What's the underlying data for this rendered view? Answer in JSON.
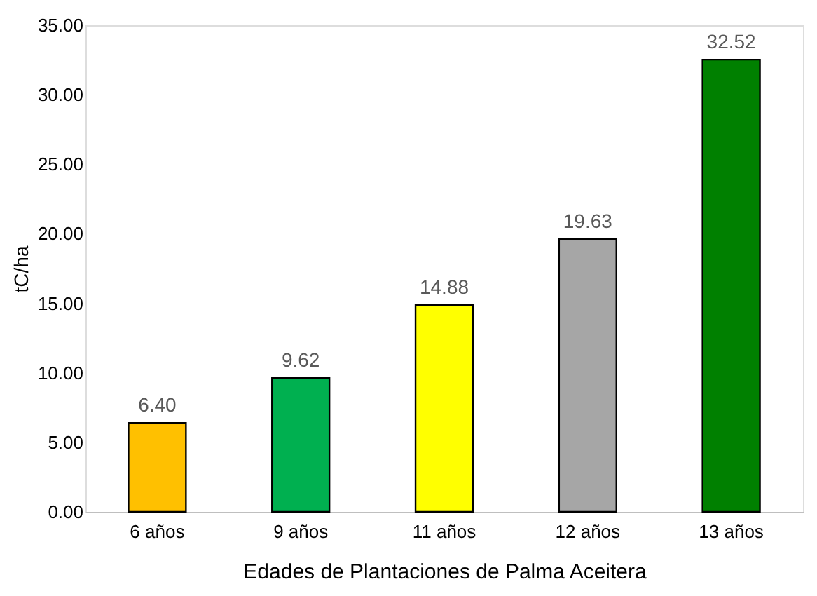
{
  "chart_data": {
    "type": "bar",
    "xlabel": "Edades de Plantaciones de Palma Aceitera",
    "ylabel": "tC/ha",
    "categories": [
      "6 años",
      "9 años",
      "11 años",
      "12 años",
      "13 años"
    ],
    "values": [
      6.4,
      9.62,
      14.88,
      19.63,
      32.52
    ],
    "colors": [
      "#ffc000",
      "#00b050",
      "#ffff00",
      "#a6a6a6",
      "#008000"
    ],
    "value_labels": [
      "6.40",
      "9.62",
      "14.88",
      "19.63",
      "32.52"
    ],
    "ylim": [
      0,
      35
    ],
    "yticks": [
      {
        "value": 0,
        "label": "0.00"
      },
      {
        "value": 5,
        "label": "5.00"
      },
      {
        "value": 10,
        "label": "10.00"
      },
      {
        "value": 15,
        "label": "15.00"
      },
      {
        "value": 20,
        "label": "20.00"
      },
      {
        "value": 25,
        "label": "25.00"
      },
      {
        "value": 30,
        "label": "30.00"
      },
      {
        "value": 35,
        "label": "35.00"
      }
    ],
    "grid": false
  }
}
